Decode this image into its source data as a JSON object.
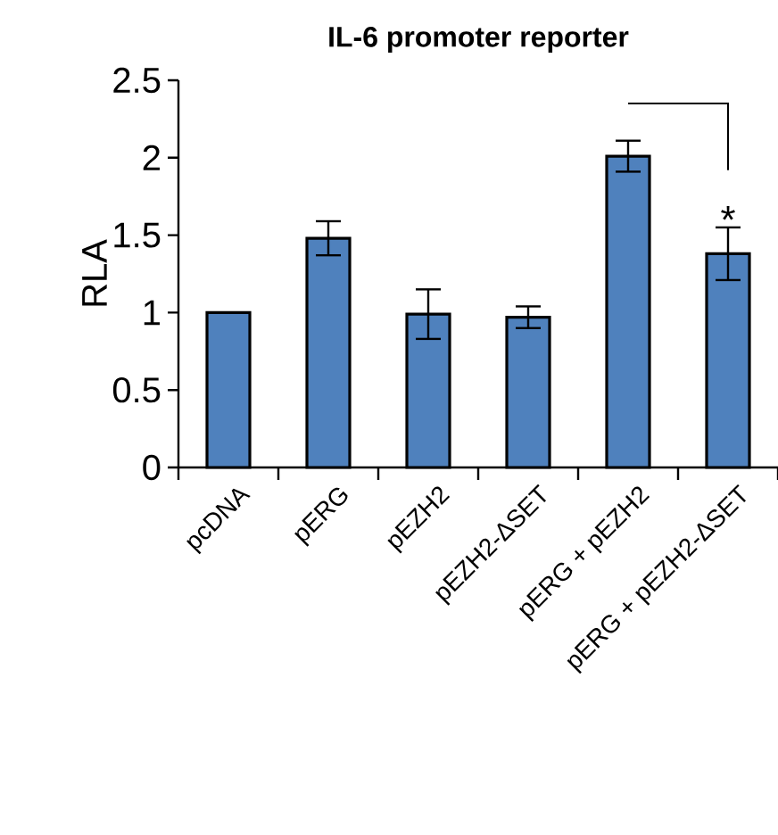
{
  "chart_data": {
    "type": "bar",
    "title": "IL-6 promoter reporter",
    "ylabel": "RLA",
    "categories": [
      "pcDNA",
      "pERG",
      "pEZH2",
      "pEZH2-ΔSET",
      "pERG + pEZH2",
      "pERG + pEZH2-ΔSET"
    ],
    "values": [
      1.0,
      1.48,
      0.99,
      0.97,
      2.01,
      1.38
    ],
    "errors": [
      null,
      0.11,
      0.16,
      0.07,
      0.1,
      0.17
    ],
    "color": "#4f81bd",
    "ylim": [
      0,
      2.5
    ],
    "yticks": [
      0,
      0.5,
      1,
      1.5,
      2,
      2.5
    ],
    "grid": false,
    "annotations": [
      {
        "text": "*",
        "x": "pERG + pEZH2-ΔSET",
        "y": 1.6
      }
    ]
  }
}
